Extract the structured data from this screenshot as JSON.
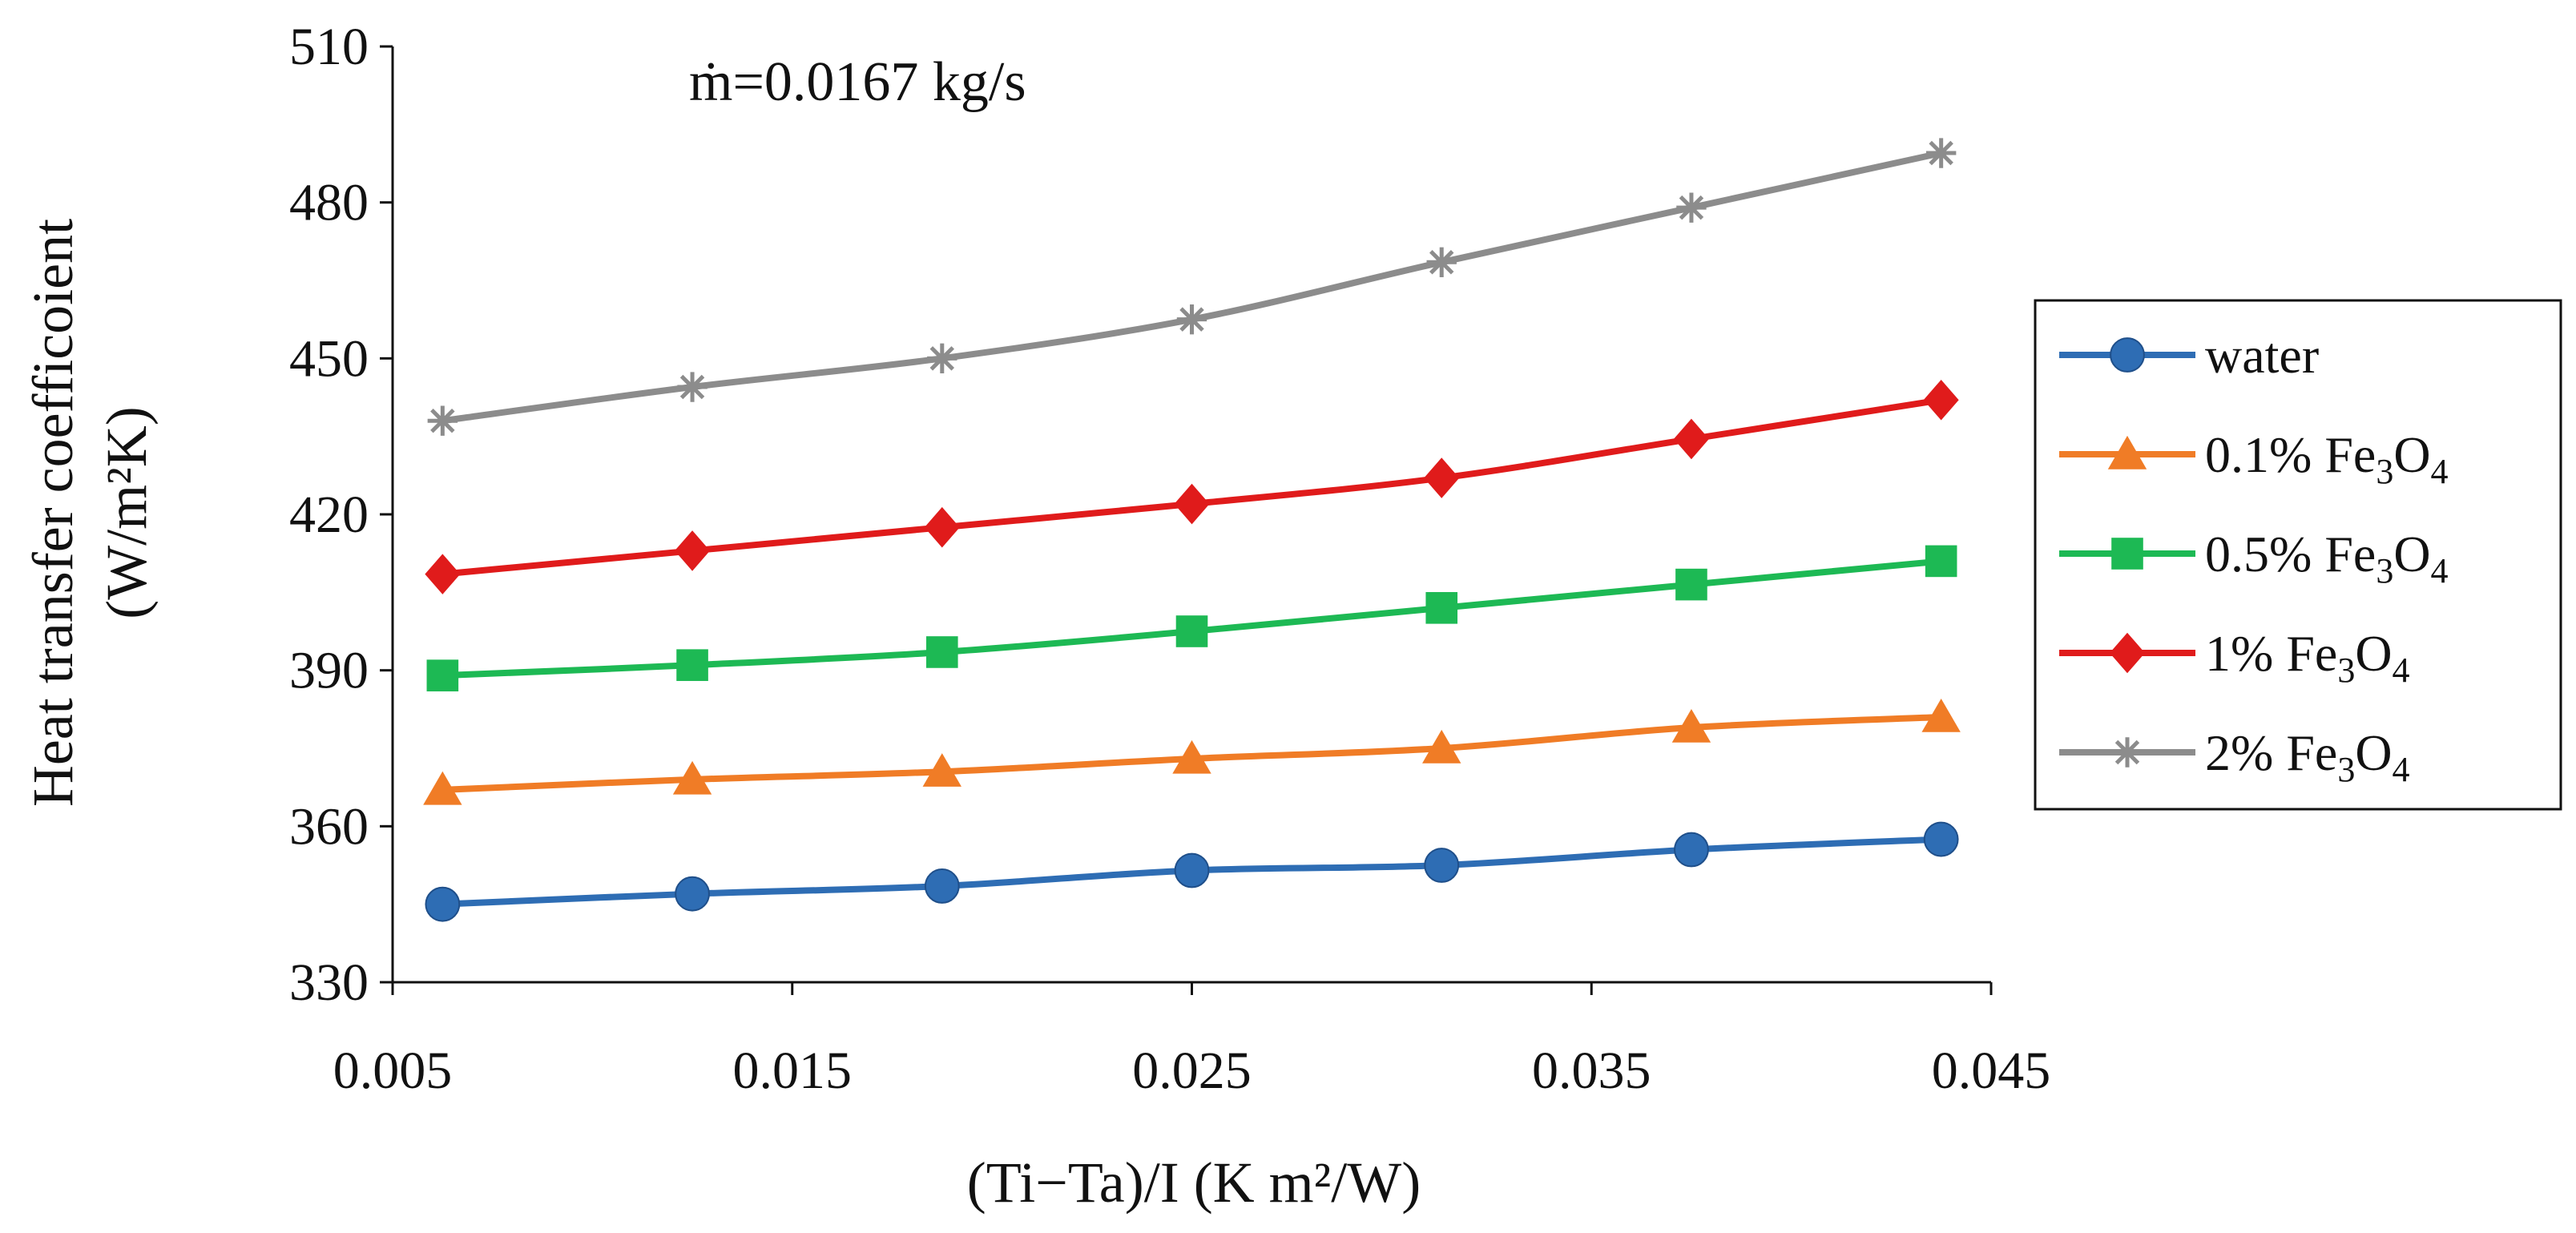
{
  "chart_data": {
    "type": "line",
    "annotation": "ṁ=0.0167 kg/s",
    "xlabel": "(Ti−Ta)/I (K m²/W)",
    "ylabel_line1": "Heat transfer coefficoient",
    "ylabel_line2": "(W/m²K)",
    "xlim": [
      0.005,
      0.045
    ],
    "ylim": [
      330,
      510
    ],
    "xticks": [
      0.005,
      0.015,
      0.025,
      0.035,
      0.045
    ],
    "xtick_labels": [
      "0.005",
      "0.015",
      "0.025",
      "0.035",
      "0.045"
    ],
    "yticks": [
      330,
      360,
      390,
      420,
      450,
      480,
      510
    ],
    "ytick_labels": [
      "330",
      "360",
      "390",
      "420",
      "450",
      "480",
      "510"
    ],
    "x": [
      0.00625,
      0.0125,
      0.01875,
      0.025,
      0.03125,
      0.0375,
      0.04375
    ],
    "series": [
      {
        "name": "water",
        "legend_main": "water",
        "legend_sub": "",
        "legend_tail": "",
        "legend_sub2": "",
        "color": "#2E6DB4",
        "marker": "circle",
        "values": [
          345,
          347,
          348.5,
          351.5,
          352.5,
          355.5,
          357.5
        ]
      },
      {
        "name": "0.1% Fe3O4",
        "legend_main": "0.1% Fe",
        "legend_sub": "3",
        "legend_tail": "O",
        "legend_sub2": "4",
        "color": "#F07C26",
        "marker": "triangle",
        "values": [
          367,
          369,
          370.5,
          373,
          375,
          379,
          381
        ]
      },
      {
        "name": "0.5% Fe3O4",
        "legend_main": "0.5% Fe",
        "legend_sub": "3",
        "legend_tail": "O",
        "legend_sub2": "4",
        "color": "#1DB954",
        "marker": "square",
        "values": [
          389,
          391,
          393.5,
          397.5,
          402,
          406.5,
          411
        ]
      },
      {
        "name": "1% Fe3O4",
        "legend_main": "1% Fe",
        "legend_sub": "3",
        "legend_tail": "O",
        "legend_sub2": "4",
        "color": "#E01B1B",
        "marker": "diamond",
        "values": [
          408.5,
          413,
          417.5,
          422,
          427,
          434.5,
          442
        ]
      },
      {
        "name": "2% Fe3O4",
        "legend_main": "2% Fe",
        "legend_sub": "3",
        "legend_tail": "O",
        "legend_sub2": "4",
        "color": "#8C8C8C",
        "marker": "star",
        "values": [
          438,
          444.5,
          450,
          457.5,
          468.5,
          479,
          489.5
        ]
      }
    ]
  }
}
